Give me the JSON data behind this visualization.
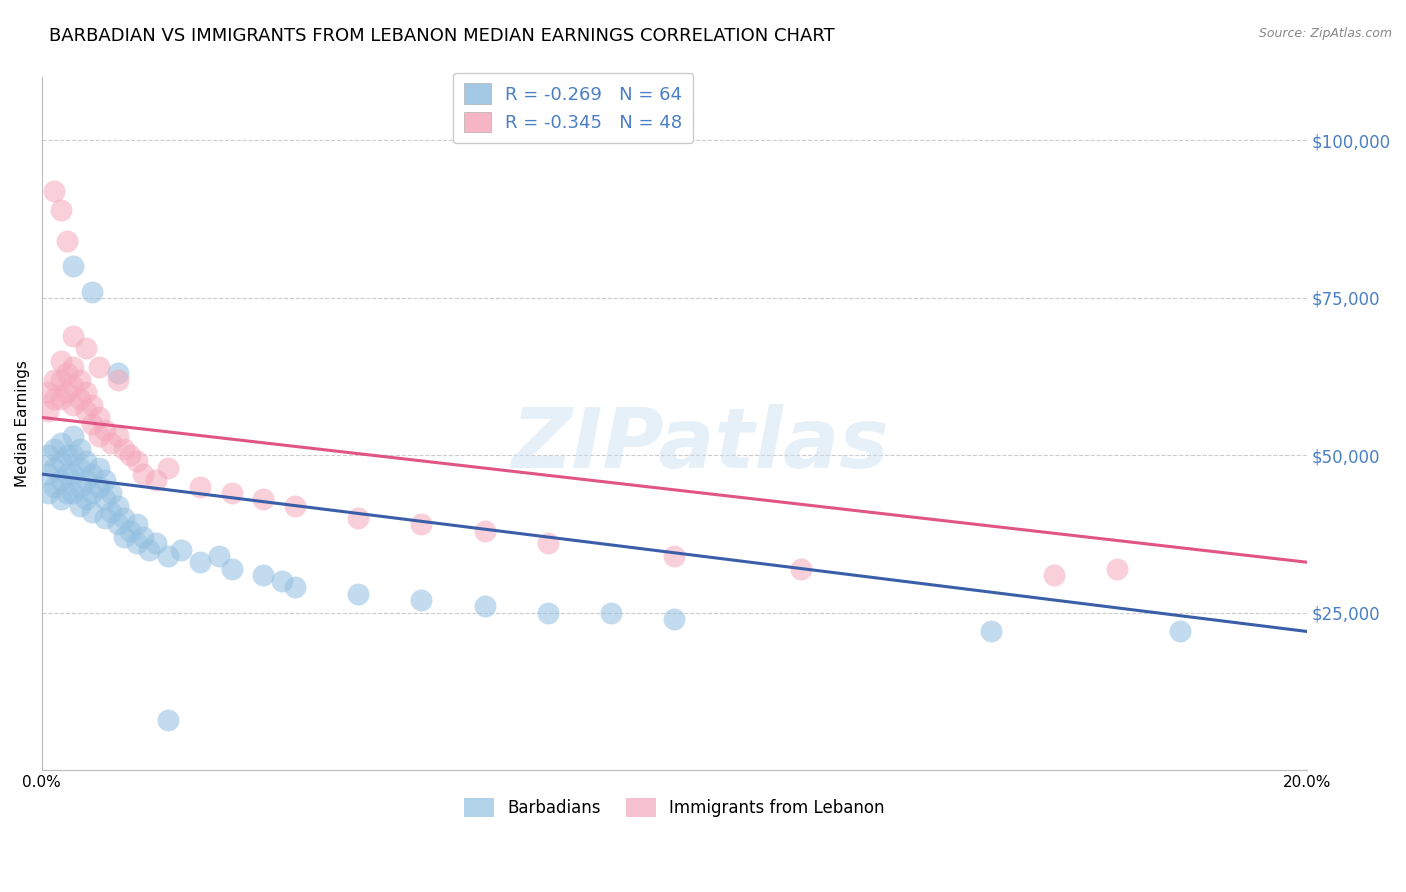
{
  "title": "BARBADIAN VS IMMIGRANTS FROM LEBANON MEDIAN EARNINGS CORRELATION CHART",
  "source": "Source: ZipAtlas.com",
  "ylabel": "Median Earnings",
  "xlim": [
    0.0,
    0.2
  ],
  "ylim": [
    0,
    110000
  ],
  "yticks": [
    0,
    25000,
    50000,
    75000,
    100000
  ],
  "ytick_labels": [
    "",
    "$25,000",
    "$50,000",
    "$75,000",
    "$100,000"
  ],
  "watermark_text": "ZIPatlas",
  "barbadian_color": "#92bfe0",
  "lebanon_color": "#f5a8bb",
  "barbadian_line_color": "#3a5fa8",
  "lebanon_line_color": "#e05585",
  "background_color": "#ffffff",
  "grid_color": "#cccccc",
  "title_fontsize": 13,
  "tick_label_color_right": "#4a7fc4",
  "legend_r1": "R = -0.269",
  "legend_n1": "N = 64",
  "legend_r2": "R = -0.345",
  "legend_n2": "N = 48",
  "barb_line_x0": 0.0,
  "barb_line_y0": 47000,
  "barb_line_x1": 0.2,
  "barb_line_y1": 22000,
  "leb_line_x0": 0.0,
  "leb_line_y0": 56000,
  "leb_line_x1": 0.2,
  "leb_line_y1": 33000,
  "barbadian_x": [
    0.001,
    0.001,
    0.001,
    0.002,
    0.002,
    0.002,
    0.003,
    0.003,
    0.003,
    0.003,
    0.004,
    0.004,
    0.004,
    0.005,
    0.005,
    0.005,
    0.005,
    0.006,
    0.006,
    0.006,
    0.006,
    0.007,
    0.007,
    0.007,
    0.008,
    0.008,
    0.008,
    0.009,
    0.009,
    0.01,
    0.01,
    0.01,
    0.011,
    0.011,
    0.012,
    0.012,
    0.013,
    0.013,
    0.014,
    0.015,
    0.015,
    0.016,
    0.017,
    0.018,
    0.02,
    0.022,
    0.025,
    0.028,
    0.03,
    0.035,
    0.038,
    0.04,
    0.05,
    0.06,
    0.07,
    0.08,
    0.09,
    0.1,
    0.15,
    0.18,
    0.005,
    0.008,
    0.012,
    0.02
  ],
  "barbadian_y": [
    50000,
    47000,
    44000,
    51000,
    48000,
    45000,
    52000,
    49000,
    46000,
    43000,
    50000,
    47000,
    44000,
    53000,
    50000,
    47000,
    44000,
    51000,
    48000,
    45000,
    42000,
    49000,
    46000,
    43000,
    47000,
    44000,
    41000,
    48000,
    45000,
    46000,
    43000,
    40000,
    44000,
    41000,
    42000,
    39000,
    40000,
    37000,
    38000,
    39000,
    36000,
    37000,
    35000,
    36000,
    34000,
    35000,
    33000,
    34000,
    32000,
    31000,
    30000,
    29000,
    28000,
    27000,
    26000,
    25000,
    25000,
    24000,
    22000,
    22000,
    80000,
    76000,
    63000,
    8000
  ],
  "lebanon_x": [
    0.001,
    0.001,
    0.002,
    0.002,
    0.003,
    0.003,
    0.003,
    0.004,
    0.004,
    0.005,
    0.005,
    0.005,
    0.006,
    0.006,
    0.007,
    0.007,
    0.008,
    0.008,
    0.009,
    0.009,
    0.01,
    0.011,
    0.012,
    0.013,
    0.014,
    0.015,
    0.016,
    0.018,
    0.02,
    0.025,
    0.03,
    0.035,
    0.04,
    0.05,
    0.06,
    0.07,
    0.08,
    0.1,
    0.12,
    0.16,
    0.002,
    0.003,
    0.004,
    0.005,
    0.007,
    0.009,
    0.012,
    0.17
  ],
  "lebanon_y": [
    60000,
    57000,
    62000,
    59000,
    65000,
    62000,
    59000,
    63000,
    60000,
    64000,
    61000,
    58000,
    62000,
    59000,
    60000,
    57000,
    58000,
    55000,
    56000,
    53000,
    54000,
    52000,
    53000,
    51000,
    50000,
    49000,
    47000,
    46000,
    48000,
    45000,
    44000,
    43000,
    42000,
    40000,
    39000,
    38000,
    36000,
    34000,
    32000,
    31000,
    92000,
    89000,
    84000,
    69000,
    67000,
    64000,
    62000,
    32000
  ]
}
